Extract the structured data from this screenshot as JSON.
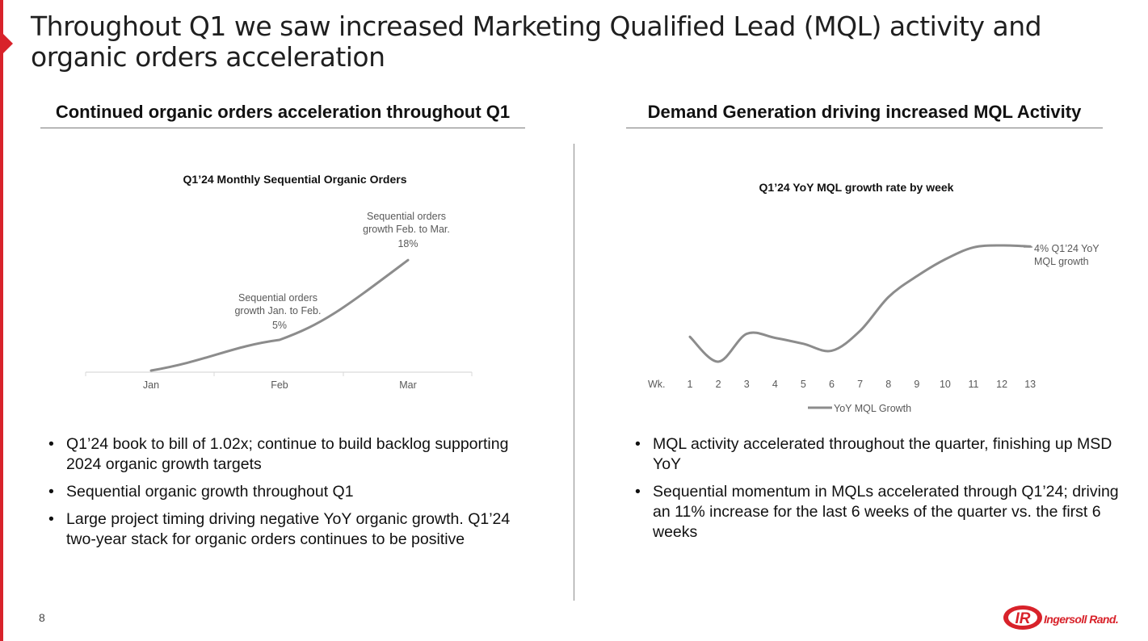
{
  "title": "Throughout Q1 we saw increased Marketing Qualified Lead (MQL) activity and organic orders acceleration",
  "left": {
    "heading": "Continued organic orders acceleration throughout Q1",
    "bullets": [
      "Q1’24 book to bill of 1.02x; continue to build backlog supporting 2024 organic growth targets",
      "Sequential organic growth throughout Q1",
      "Large project timing driving negative YoY organic growth. Q1’24 two-year stack for organic orders continues to be positive"
    ]
  },
  "right": {
    "heading": "Demand Generation driving increased MQL Activity",
    "bullets": [
      "MQL activity accelerated throughout the quarter, finishing up MSD YoY",
      "Sequential momentum in MQLs accelerated through Q1’24; driving an 11% increase for the last 6 weeks of the quarter vs. the first 6 weeks"
    ]
  },
  "page_number": "8",
  "brand": {
    "logo_mark": "IR",
    "logo_text": "Ingersoll Rand.",
    "color": "#d8222a"
  },
  "chart_data": [
    {
      "type": "line",
      "title": "Q1’24 Monthly Sequential Organic Orders",
      "categories": [
        "Jan",
        "Feb",
        "Mar"
      ],
      "series": [
        {
          "name": "",
          "values": [
            0,
            5,
            18
          ]
        }
      ],
      "annotations": [
        {
          "lines": [
            "Sequential orders",
            "growth Jan. to Feb."
          ],
          "value": "5%"
        },
        {
          "lines": [
            "Sequential orders",
            "growth Feb. to Mar."
          ],
          "value": "18%"
        }
      ],
      "grid": false,
      "line_color": "#8c8c8c"
    },
    {
      "type": "line",
      "title": "Q1’24 YoY MQL growth rate by week",
      "x_prefix": "Wk.",
      "categories": [
        "1",
        "2",
        "3",
        "4",
        "5",
        "6",
        "7",
        "8",
        "9",
        "10",
        "11",
        "12",
        "13"
      ],
      "series": [
        {
          "name": "YoY MQL Growth",
          "values": [
            -4.2,
            -6.7,
            -3.9,
            -4.3,
            -4.9,
            -5.6,
            -3.6,
            -0.2,
            1.9,
            3.6,
            4.8,
            5.0,
            4.9
          ]
        }
      ],
      "end_label": [
        "4% Q1’24 YoY",
        "MQL growth"
      ],
      "legend": "bottom",
      "grid": false,
      "line_color": "#8c8c8c"
    }
  ]
}
